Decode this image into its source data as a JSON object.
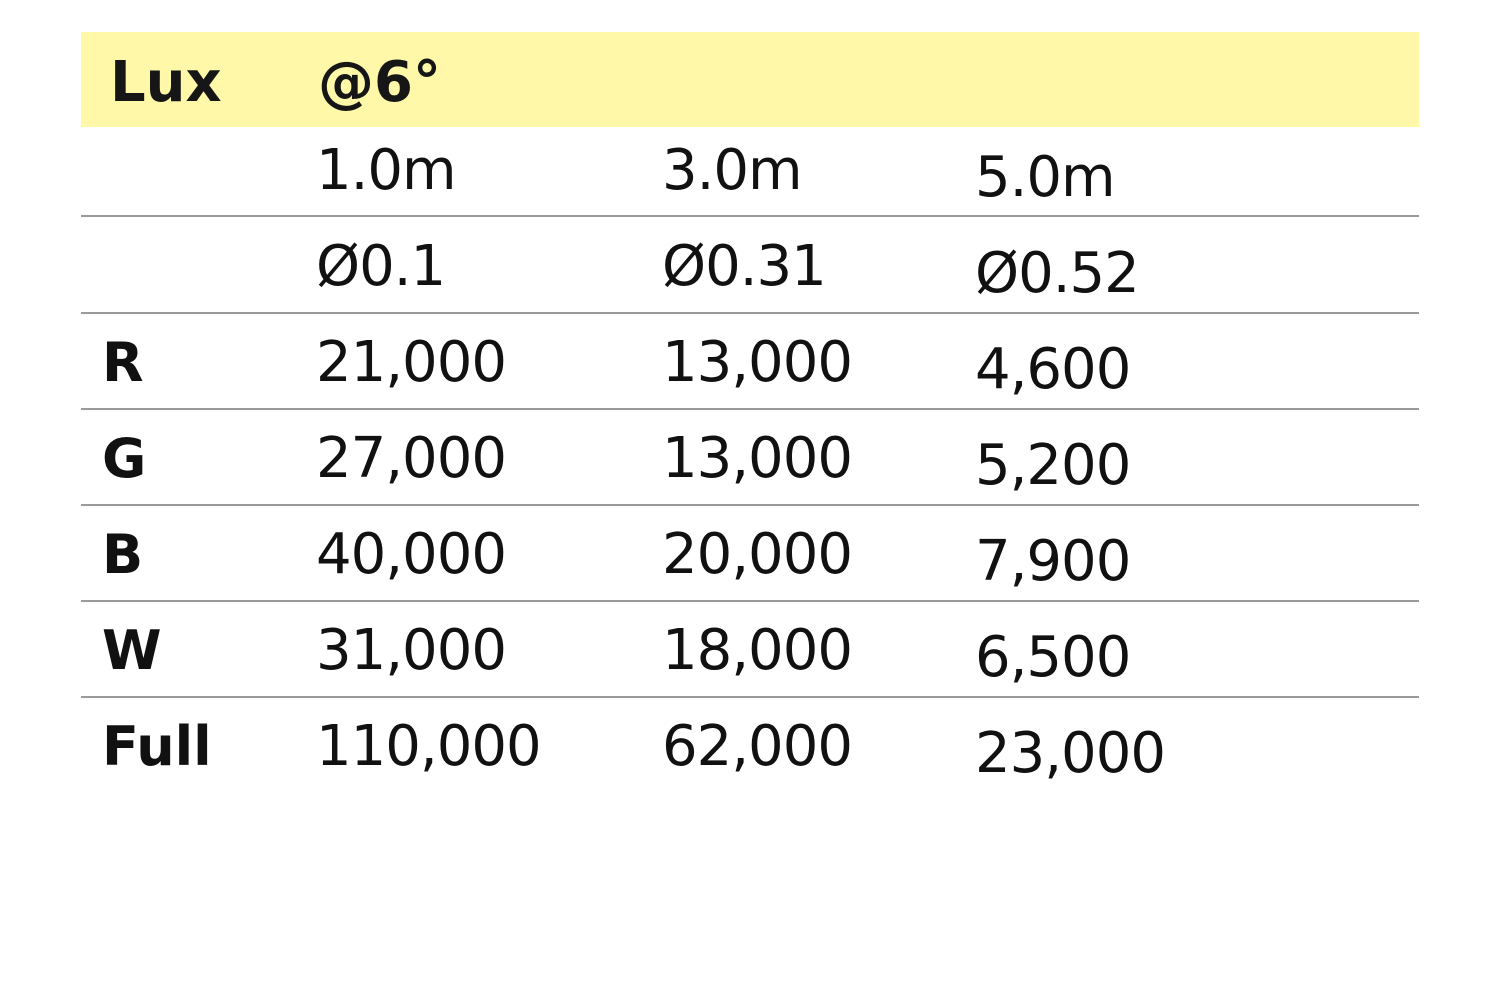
{
  "header": {
    "title": "Lux",
    "angle": "@6°",
    "background_color": "#fff8a8"
  },
  "distances": [
    "1.0m",
    "3.0m",
    "5.0m"
  ],
  "diameters": [
    "Ø0.1",
    "Ø0.31",
    "Ø0.52"
  ],
  "rows": [
    {
      "label": "R",
      "values": [
        "21,000",
        "13,000",
        "4,600"
      ]
    },
    {
      "label": "G",
      "values": [
        "27,000",
        "13,000",
        "5,200"
      ]
    },
    {
      "label": "B",
      "values": [
        "40,000",
        "20,000",
        "7,900"
      ]
    },
    {
      "label": "W",
      "values": [
        "31,000",
        "18,000",
        "6,500"
      ]
    },
    {
      "label": "Full",
      "values": [
        "110,000",
        "62,000",
        "23,000"
      ]
    }
  ]
}
